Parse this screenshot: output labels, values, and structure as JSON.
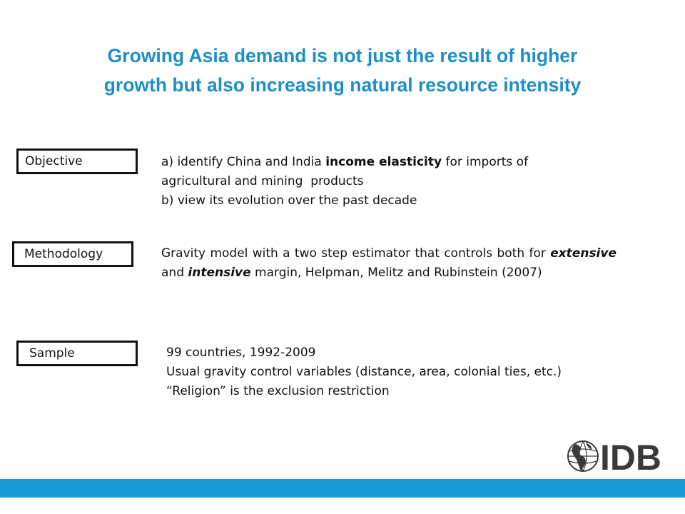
{
  "slide": {
    "title_lines": [
      "Growing Asia demand is not just the result of higher",
      "growth but also increasing natural resource intensity"
    ]
  },
  "objective": {
    "label": "Objective",
    "line1_pre": "a) identify China and India ",
    "line1_bold": "income elasticity",
    "line1_post": " for imports of",
    "line2": "agricultural and mining  products",
    "line3": "b) view its evolution over the past decade"
  },
  "methodology": {
    "label": "Methodology",
    "t1": "Gravity model with a two step estimator that controls both for ",
    "t2": "extensive",
    "t3": " and ",
    "t4": "intensive",
    "t5": " margin, Helpman, Melitz and Rubinstein (2007)"
  },
  "sample": {
    "label": "Sample",
    "lines": [
      "99 countries, 1992-2009",
      "Usual gravity control variables (distance, area, colonial ties, etc.)",
      "“Religion” is the exclusion restriction"
    ]
  },
  "logo": {
    "text": "IDB",
    "icon": "globe-icon"
  },
  "colors": {
    "title": "#1c8fc8",
    "bar": "#1a9bd7",
    "logo": "#3a3a3a"
  }
}
